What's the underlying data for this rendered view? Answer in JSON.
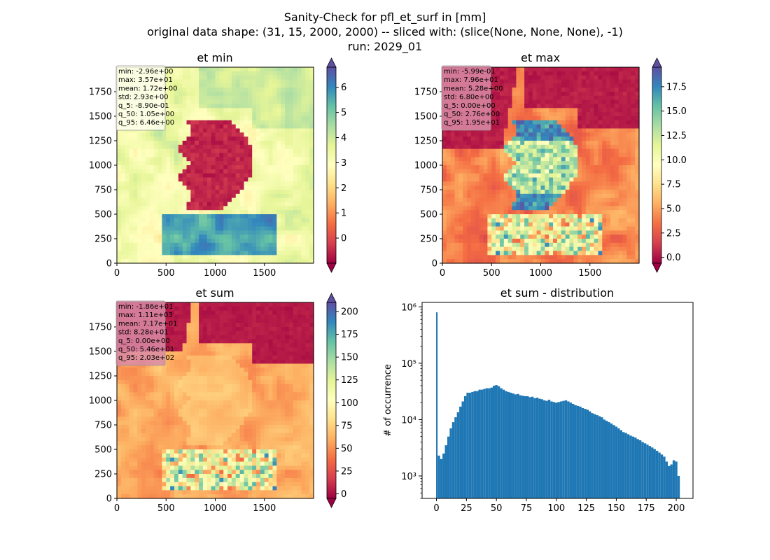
{
  "figure": {
    "title_lines": [
      "Sanity-Check for pfl_et_surf in [mm]",
      "original data shape: (31, 15, 2000, 2000) -- sliced with: (slice(None, None, None), -1)",
      "run: 2029_01"
    ]
  },
  "colors": {
    "spectral": [
      "#9e0142",
      "#d53e4f",
      "#f46d43",
      "#fdae61",
      "#fee08b",
      "#ffffbf",
      "#e6f598",
      "#abdda4",
      "#66c2a5",
      "#3288bd",
      "#5e4fa2"
    ],
    "histogram_bar": "#1f77b4",
    "stats_box_light": "#ffffee",
    "stats_box_dark": "#d98ba6"
  },
  "panels": [
    {
      "title": "et min",
      "x_ticks": [
        "0",
        "500",
        "1000",
        "1500"
      ],
      "y_ticks": [
        "0",
        "250",
        "500",
        "750",
        "1000",
        "1250",
        "1500",
        "1750"
      ],
      "colorbar_ticks": [
        "0",
        "1",
        "2",
        "3",
        "4",
        "5",
        "6"
      ],
      "colorbar_range": [
        -1,
        6.8
      ],
      "stats": [
        "min: -2.96e+00",
        "max: 3.57e+01",
        "mean: 1.72e+00",
        "std: 2.93e+00",
        "q_5: -8.90e-01",
        "q_50: 1.05e+00",
        "q_95: 6.46e+00"
      ],
      "map_style": "min"
    },
    {
      "title": "et max",
      "x_ticks": [
        "0",
        "500",
        "1000",
        "1500"
      ],
      "y_ticks": [
        "0",
        "250",
        "500",
        "750",
        "1000",
        "1250",
        "1500",
        "1750"
      ],
      "colorbar_ticks": [
        "0.0",
        "2.5",
        "5.0",
        "7.5",
        "10.0",
        "12.5",
        "15.0",
        "17.5"
      ],
      "colorbar_range": [
        -0.6,
        19.5
      ],
      "stats": [
        "min: -5.99e-01",
        "max: 7.96e+01",
        "mean: 5.28e+00",
        "std: 6.80e+00",
        "q_5: 0.00e+00",
        "q_50: 2.76e+00",
        "q_95: 1.95e+01"
      ],
      "map_style": "max"
    },
    {
      "title": "et sum",
      "x_ticks": [
        "0",
        "500",
        "1000",
        "1500"
      ],
      "y_ticks": [
        "0",
        "250",
        "500",
        "750",
        "1000",
        "1250",
        "1500",
        "1750"
      ],
      "colorbar_ticks": [
        "0",
        "25",
        "50",
        "75",
        "100",
        "125",
        "150",
        "175",
        "200"
      ],
      "colorbar_range": [
        -5,
        210
      ],
      "stats": [
        "min: -1.86e+01",
        "max: 1.11e+03",
        "mean: 7.17e+01",
        "std: 8.28e+01",
        "q_5: 0.00e+00",
        "q_50: 5.46e+01",
        "q_95: 2.03e+02"
      ],
      "map_style": "sum"
    }
  ],
  "chart_data": {
    "type": "bar",
    "title": "et sum - distribution",
    "xlabel": "",
    "ylabel": "# of occurrence",
    "yscale": "log",
    "x_ticks": [
      "0",
      "25",
      "50",
      "75",
      "100",
      "125",
      "150",
      "175",
      "200"
    ],
    "y_ticks": [
      "10³",
      "10⁴",
      "10⁵",
      "10⁶"
    ],
    "xlim": [
      -12,
      214
    ],
    "ylim": [
      400,
      1200000
    ],
    "grid": false,
    "bins": [
      {
        "x": 0.3,
        "y": 800000
      },
      {
        "x": 2,
        "y": 2300
      },
      {
        "x": 4,
        "y": 2000
      },
      {
        "x": 6,
        "y": 2500
      },
      {
        "x": 8,
        "y": 3500
      },
      {
        "x": 10,
        "y": 5000
      },
      {
        "x": 12,
        "y": 7000
      },
      {
        "x": 14,
        "y": 9000
      },
      {
        "x": 16,
        "y": 11000
      },
      {
        "x": 18,
        "y": 13500
      },
      {
        "x": 20,
        "y": 17000
      },
      {
        "x": 22,
        "y": 21000
      },
      {
        "x": 24,
        "y": 26000
      },
      {
        "x": 26,
        "y": 30000
      },
      {
        "x": 28,
        "y": 30000
      },
      {
        "x": 30,
        "y": 31000
      },
      {
        "x": 32,
        "y": 32000
      },
      {
        "x": 34,
        "y": 32000
      },
      {
        "x": 36,
        "y": 34000
      },
      {
        "x": 38,
        "y": 34000
      },
      {
        "x": 40,
        "y": 35000
      },
      {
        "x": 42,
        "y": 36000
      },
      {
        "x": 44,
        "y": 36000
      },
      {
        "x": 46,
        "y": 37000
      },
      {
        "x": 48,
        "y": 40000
      },
      {
        "x": 50,
        "y": 41000
      },
      {
        "x": 52,
        "y": 39000
      },
      {
        "x": 54,
        "y": 36000
      },
      {
        "x": 56,
        "y": 34000
      },
      {
        "x": 58,
        "y": 32000
      },
      {
        "x": 60,
        "y": 31000
      },
      {
        "x": 62,
        "y": 30000
      },
      {
        "x": 64,
        "y": 29000
      },
      {
        "x": 66,
        "y": 28000
      },
      {
        "x": 68,
        "y": 28500
      },
      {
        "x": 70,
        "y": 27000
      },
      {
        "x": 72,
        "y": 26500
      },
      {
        "x": 74,
        "y": 26000
      },
      {
        "x": 76,
        "y": 26000
      },
      {
        "x": 78,
        "y": 25000
      },
      {
        "x": 80,
        "y": 25500
      },
      {
        "x": 82,
        "y": 24000
      },
      {
        "x": 84,
        "y": 24500
      },
      {
        "x": 86,
        "y": 23500
      },
      {
        "x": 88,
        "y": 23000
      },
      {
        "x": 90,
        "y": 22000
      },
      {
        "x": 92,
        "y": 21500
      },
      {
        "x": 94,
        "y": 22500
      },
      {
        "x": 96,
        "y": 21000
      },
      {
        "x": 98,
        "y": 20500
      },
      {
        "x": 100,
        "y": 20000
      },
      {
        "x": 102,
        "y": 20500
      },
      {
        "x": 104,
        "y": 21000
      },
      {
        "x": 106,
        "y": 21500
      },
      {
        "x": 108,
        "y": 22000
      },
      {
        "x": 110,
        "y": 21000
      },
      {
        "x": 112,
        "y": 20000
      },
      {
        "x": 114,
        "y": 19000
      },
      {
        "x": 116,
        "y": 18000
      },
      {
        "x": 118,
        "y": 17500
      },
      {
        "x": 120,
        "y": 17000
      },
      {
        "x": 122,
        "y": 16000
      },
      {
        "x": 124,
        "y": 15500
      },
      {
        "x": 126,
        "y": 15000
      },
      {
        "x": 128,
        "y": 14000
      },
      {
        "x": 130,
        "y": 13000
      },
      {
        "x": 132,
        "y": 12500
      },
      {
        "x": 134,
        "y": 12000
      },
      {
        "x": 136,
        "y": 11500
      },
      {
        "x": 138,
        "y": 11000
      },
      {
        "x": 140,
        "y": 10000
      },
      {
        "x": 142,
        "y": 9500
      },
      {
        "x": 144,
        "y": 9000
      },
      {
        "x": 146,
        "y": 8500
      },
      {
        "x": 148,
        "y": 8000
      },
      {
        "x": 150,
        "y": 7500
      },
      {
        "x": 152,
        "y": 7000
      },
      {
        "x": 154,
        "y": 6500
      },
      {
        "x": 156,
        "y": 6000
      },
      {
        "x": 158,
        "y": 5800
      },
      {
        "x": 160,
        "y": 5500
      },
      {
        "x": 162,
        "y": 5200
      },
      {
        "x": 164,
        "y": 5000
      },
      {
        "x": 166,
        "y": 4800
      },
      {
        "x": 168,
        "y": 4500
      },
      {
        "x": 170,
        "y": 4300
      },
      {
        "x": 172,
        "y": 4000
      },
      {
        "x": 174,
        "y": 3800
      },
      {
        "x": 176,
        "y": 3600
      },
      {
        "x": 178,
        "y": 3400
      },
      {
        "x": 180,
        "y": 3200
      },
      {
        "x": 182,
        "y": 3000
      },
      {
        "x": 184,
        "y": 2800
      },
      {
        "x": 186,
        "y": 2600
      },
      {
        "x": 188,
        "y": 2400
      },
      {
        "x": 190,
        "y": 2200
      },
      {
        "x": 192,
        "y": 1800
      },
      {
        "x": 194,
        "y": 1500
      },
      {
        "x": 196,
        "y": 1600
      },
      {
        "x": 198,
        "y": 1900
      },
      {
        "x": 200,
        "y": 1800
      },
      {
        "x": 202,
        "y": 1000
      }
    ]
  }
}
